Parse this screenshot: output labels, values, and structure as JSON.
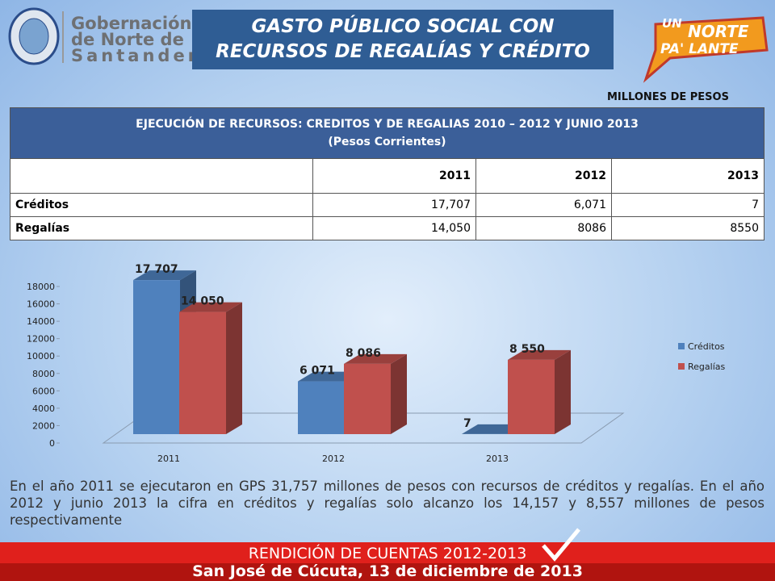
{
  "header": {
    "logo_left": [
      "Gobernación",
      "de Norte de",
      "Santander"
    ],
    "title": [
      "GASTO PÚBLICO SOCIAL CON",
      "RECURSOS DE REGALÍAS Y CRÉDITO"
    ],
    "logo_right": [
      "UN",
      "NORTE",
      "PA' LANTE"
    ]
  },
  "units": "MILLONES DE PESOS",
  "table": {
    "title": "EJECUCIÓN DE RECURSOS: CREDITOS Y DE REGALIAS 2010 – 2012 Y JUNIO 2013",
    "subtitle": "(Pesos Corrientes)",
    "columns": [
      "2011",
      "2012",
      "2013"
    ],
    "rows": [
      {
        "label": "Créditos",
        "cells": [
          "17,707",
          "6,071",
          "7"
        ]
      },
      {
        "label": "Regalías",
        "cells": [
          "14,050",
          "8086",
          "8550"
        ]
      }
    ]
  },
  "chart_data": {
    "type": "bar",
    "categories": [
      "2011",
      "2012",
      "2013"
    ],
    "series": [
      {
        "name": "Créditos",
        "color": "#4f81bd",
        "values": [
          17707,
          6071,
          7
        ],
        "value_labels": [
          "17 707",
          "6 071",
          "7"
        ]
      },
      {
        "name": "Regalías",
        "color": "#c0504d",
        "values": [
          14050,
          8086,
          8550
        ],
        "value_labels": [
          "14 050",
          "8 086",
          "8 550"
        ]
      }
    ],
    "ylim": [
      0,
      18000
    ],
    "yticks": [
      0,
      2000,
      4000,
      6000,
      8000,
      10000,
      12000,
      14000,
      16000,
      18000
    ],
    "legend": "right"
  },
  "paragraph": "En el año 2011 se ejecutaron en GPS 31,757 millones de pesos con recursos de créditos y regalías. En el año 2012 y junio 2013 la cifra en créditos y regalías solo alcanzo los 14,157 y 8,557 millones de pesos respectivamente",
  "footer": {
    "title": "RENDICIÓN DE CUENTAS 2012-2013",
    "subtitle": "San José de Cúcuta, 13 de diciembre de 2013"
  }
}
